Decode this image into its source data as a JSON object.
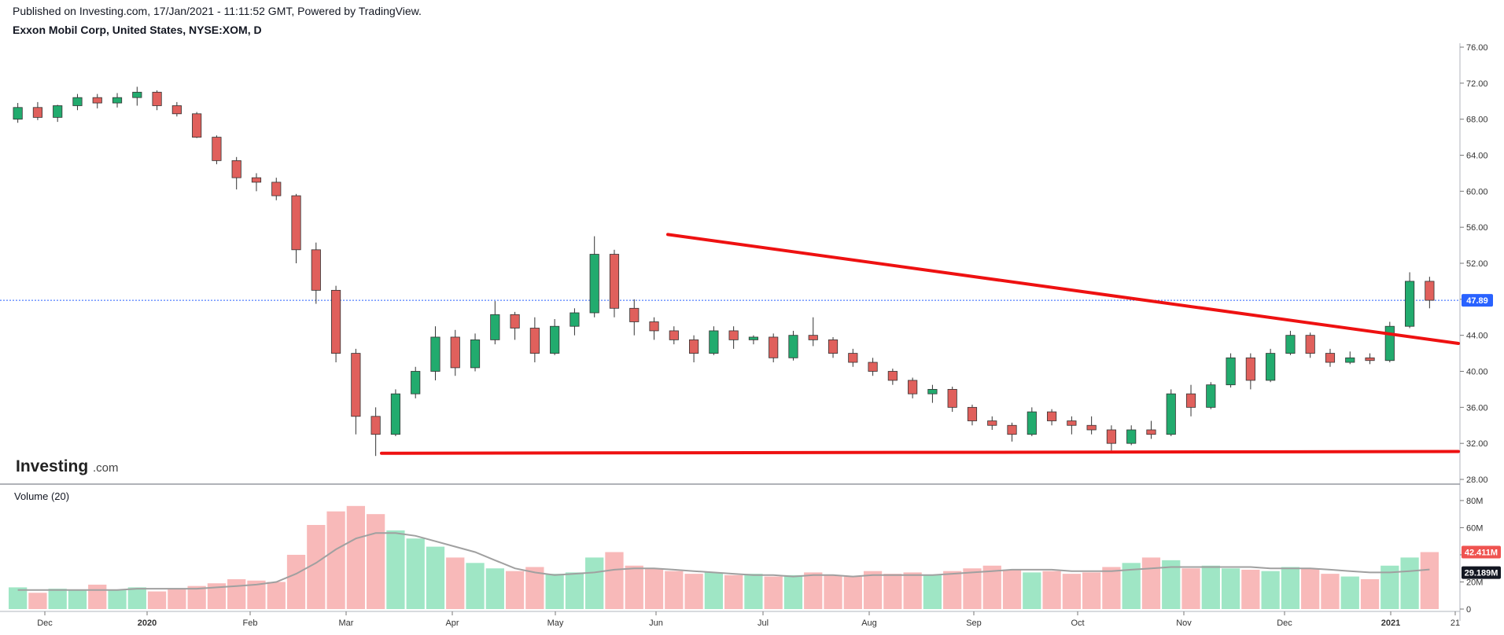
{
  "header": {
    "published": "Published on Investing.com, 17/Jan/2021 - 11:11:52 GMT, Powered by TradingView.",
    "symbol": "Exxon Mobil Corp, United States, NYSE:XOM, D"
  },
  "logo": {
    "main": "Investing",
    "suffix": ".com"
  },
  "volume_panel": {
    "label": "Volume (20)"
  },
  "colors": {
    "up": "#26a69a",
    "up_fill": "#22ab6e",
    "down": "#ef5350",
    "down_fill": "#e0605c",
    "vol_up": "#9fe6c5",
    "vol_down": "#f8b9b9",
    "trendline": "#ee1111",
    "ma": "#a0a0a0",
    "price_line": "#2962ff"
  },
  "chart_data": [
    {
      "type": "candlestick",
      "name": "price",
      "price_axis": {
        "ylim": [
          28,
          76
        ],
        "ticks": [
          "28.00",
          "32.00",
          "36.00",
          "40.00",
          "44.00",
          "48.00",
          "52.00",
          "56.00",
          "60.00",
          "64.00",
          "68.00",
          "72.00",
          "76.00"
        ]
      },
      "last_price": {
        "value": 47.89,
        "label": "47.89"
      },
      "time_axis": {
        "labels": [
          "Dec",
          "2020",
          "Feb",
          "Mar",
          "Apr",
          "May",
          "Jun",
          "Jul",
          "Aug",
          "Sep",
          "Oct",
          "Nov",
          "Dec",
          "2021",
          "21"
        ],
        "bold": [
          "2020",
          "2021"
        ]
      },
      "ohlc_weekly_approx": [
        [
          68.0,
          69.8,
          67.6,
          69.3
        ],
        [
          69.3,
          69.9,
          67.9,
          68.2
        ],
        [
          68.2,
          69.6,
          67.7,
          69.5
        ],
        [
          69.5,
          70.8,
          69.0,
          70.4
        ],
        [
          70.4,
          70.8,
          69.2,
          69.8
        ],
        [
          69.8,
          70.9,
          69.3,
          70.4
        ],
        [
          70.4,
          71.6,
          69.5,
          71.0
        ],
        [
          71.0,
          71.2,
          69.0,
          69.5
        ],
        [
          69.5,
          69.9,
          68.3,
          68.6
        ],
        [
          68.6,
          68.8,
          65.9,
          66.0
        ],
        [
          66.0,
          66.2,
          63.0,
          63.4
        ],
        [
          63.4,
          63.8,
          60.2,
          61.5
        ],
        [
          61.5,
          62.0,
          60.0,
          61.0
        ],
        [
          61.0,
          61.5,
          59.0,
          59.5
        ],
        [
          59.5,
          59.7,
          52.0,
          53.5
        ],
        [
          53.5,
          54.3,
          47.5,
          49.0
        ],
        [
          49.0,
          49.5,
          41.0,
          42.0
        ],
        [
          42.0,
          42.5,
          33.0,
          35.0
        ],
        [
          35.0,
          36.0,
          30.6,
          33.0
        ],
        [
          33.0,
          38.0,
          32.8,
          37.5
        ],
        [
          37.5,
          40.5,
          37.0,
          40.0
        ],
        [
          40.0,
          45.0,
          39.0,
          43.8
        ],
        [
          43.8,
          44.6,
          39.5,
          40.4
        ],
        [
          40.4,
          44.2,
          40.0,
          43.5
        ],
        [
          43.5,
          47.8,
          43.0,
          46.3
        ],
        [
          46.3,
          46.6,
          43.5,
          44.8
        ],
        [
          44.8,
          46.0,
          41.0,
          42.0
        ],
        [
          42.0,
          45.8,
          41.8,
          45.0
        ],
        [
          45.0,
          47.0,
          44.0,
          46.5
        ],
        [
          46.5,
          55.0,
          46.0,
          53.0
        ],
        [
          53.0,
          53.5,
          46.0,
          47.0
        ],
        [
          47.0,
          48.0,
          44.0,
          45.5
        ],
        [
          45.5,
          46.0,
          43.5,
          44.5
        ],
        [
          44.5,
          45.0,
          43.0,
          43.5
        ],
        [
          43.5,
          44.0,
          41.0,
          42.0
        ],
        [
          42.0,
          45.0,
          41.8,
          44.5
        ],
        [
          44.5,
          45.0,
          42.5,
          43.5
        ],
        [
          43.5,
          44.0,
          43.0,
          43.8
        ],
        [
          43.8,
          44.2,
          41.0,
          41.5
        ],
        [
          41.5,
          44.5,
          41.2,
          44.0
        ],
        [
          44.0,
          46.0,
          42.8,
          43.5
        ],
        [
          43.5,
          43.8,
          41.5,
          42.0
        ],
        [
          42.0,
          42.5,
          40.5,
          41.0
        ],
        [
          41.0,
          41.5,
          39.5,
          40.0
        ],
        [
          40.0,
          40.3,
          38.5,
          39.0
        ],
        [
          39.0,
          39.3,
          37.0,
          37.5
        ],
        [
          37.5,
          38.5,
          36.5,
          38.0
        ],
        [
          38.0,
          38.3,
          35.5,
          36.0
        ],
        [
          36.0,
          36.3,
          34.0,
          34.5
        ],
        [
          34.5,
          35.0,
          33.5,
          34.0
        ],
        [
          34.0,
          34.3,
          32.2,
          33.0
        ],
        [
          33.0,
          36.0,
          32.8,
          35.5
        ],
        [
          35.5,
          35.8,
          34.0,
          34.5
        ],
        [
          34.5,
          35.0,
          33.0,
          34.0
        ],
        [
          34.0,
          35.0,
          33.0,
          33.5
        ],
        [
          33.5,
          34.0,
          31.2,
          32.0
        ],
        [
          32.0,
          34.0,
          31.8,
          33.5
        ],
        [
          33.5,
          34.5,
          32.5,
          33.0
        ],
        [
          33.0,
          38.0,
          32.8,
          37.5
        ],
        [
          37.5,
          38.5,
          35.0,
          36.0
        ],
        [
          36.0,
          38.8,
          35.8,
          38.5
        ],
        [
          38.5,
          42.0,
          38.2,
          41.5
        ],
        [
          41.5,
          42.0,
          38.0,
          39.0
        ],
        [
          39.0,
          42.5,
          38.8,
          42.0
        ],
        [
          42.0,
          44.5,
          41.8,
          44.0
        ],
        [
          44.0,
          44.3,
          41.5,
          42.0
        ],
        [
          42.0,
          42.5,
          40.5,
          41.0
        ],
        [
          41.0,
          42.2,
          40.8,
          41.5
        ],
        [
          41.5,
          42.0,
          40.8,
          41.2
        ],
        [
          41.2,
          45.5,
          41.0,
          45.0
        ],
        [
          45.0,
          51.0,
          44.8,
          50.0
        ],
        [
          50.0,
          50.5,
          47.0,
          47.89
        ]
      ],
      "trendlines": [
        {
          "name": "descending-resistance",
          "from": {
            "x": "Jun",
            "y": 55.2
          },
          "to": {
            "x": "21",
            "y": 43.1
          }
        },
        {
          "name": "horizontal-support",
          "from": {
            "x": "Mar",
            "y": 30.9
          },
          "to": {
            "x": "21",
            "y": 31.1
          }
        }
      ]
    },
    {
      "type": "bar",
      "name": "volume",
      "volume_axis": {
        "ylim": [
          0,
          84
        ],
        "ticks": [
          "0",
          "20M",
          "40M",
          "60M",
          "80M"
        ]
      },
      "last_volume_label": "42.411M",
      "ma_label": "29.189M",
      "volume_weekly_approx_M": [
        16,
        12,
        15,
        14,
        18,
        14,
        16,
        13,
        15,
        17,
        19,
        22,
        21,
        20,
        40,
        62,
        72,
        76,
        70,
        58,
        52,
        46,
        38,
        34,
        30,
        28,
        31,
        26,
        27,
        38,
        42,
        32,
        30,
        28,
        26,
        27,
        25,
        26,
        24,
        25,
        27,
        25,
        24,
        28,
        26,
        27,
        25,
        28,
        30,
        32,
        29,
        27,
        28,
        26,
        27,
        31,
        34,
        38,
        36,
        30,
        32,
        30,
        29,
        28,
        31,
        30,
        26,
        24,
        22,
        32,
        38,
        42
      ],
      "ma_weekly_approx_M": [
        14,
        14,
        14,
        14,
        14,
        14,
        15,
        15,
        15,
        15,
        16,
        17,
        18,
        20,
        26,
        34,
        44,
        52,
        56,
        56,
        54,
        50,
        46,
        42,
        36,
        30,
        27,
        25,
        26,
        27,
        29,
        30,
        30,
        29,
        28,
        27,
        26,
        25,
        25,
        24,
        25,
        25,
        24,
        25,
        25,
        25,
        25,
        26,
        27,
        28,
        29,
        29,
        29,
        28,
        28,
        28,
        29,
        30,
        31,
        31,
        31,
        31,
        31,
        30,
        30,
        30,
        29,
        28,
        27,
        27,
        28,
        29.2
      ]
    }
  ]
}
